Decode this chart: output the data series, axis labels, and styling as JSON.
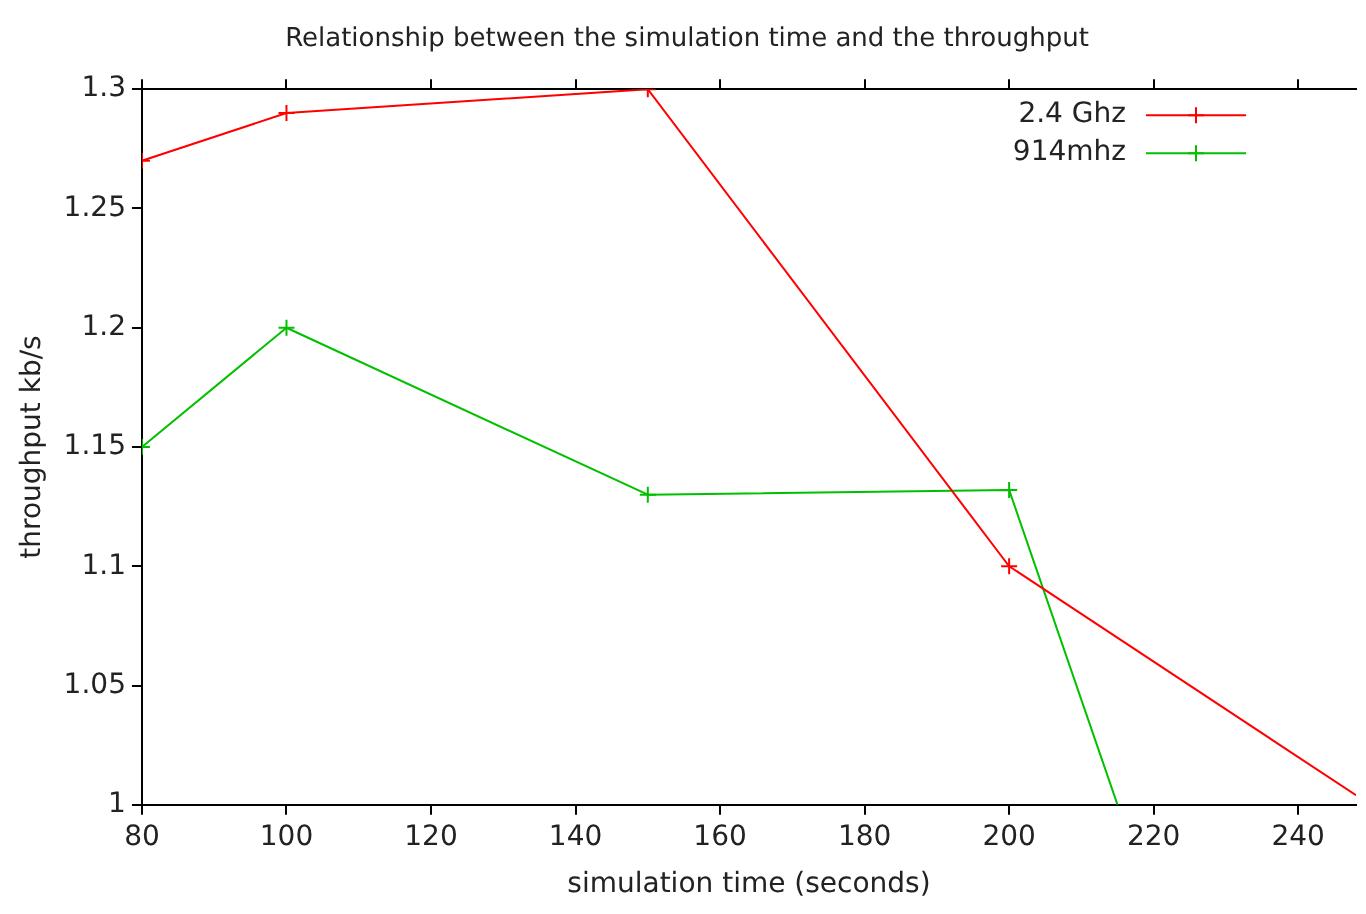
{
  "chart_data": {
    "type": "line",
    "title": "Relationship between the simulation time and the throughput",
    "xlabel": "simulation time (seconds)",
    "ylabel": "throughput kb/s",
    "series": [
      {
        "name": "2.4 Ghz",
        "color": "#ff0000",
        "x": [
          80,
          100,
          150,
          200,
          248
        ],
        "values": [
          1.27,
          1.29,
          1.3,
          1.1,
          1.004
        ]
      },
      {
        "name": "914mhz",
        "color": "#00c000",
        "x": [
          80,
          100,
          150,
          200,
          215
        ],
        "values": [
          1.15,
          1.2,
          1.13,
          1.132,
          1.0
        ]
      }
    ],
    "xlim": [
      80,
      248
    ],
    "xticks": [
      80,
      100,
      120,
      140,
      160,
      180,
      200,
      220,
      240
    ],
    "ylim": [
      1,
      1.3
    ],
    "yticks": [
      1,
      1.05,
      1.1,
      1.15,
      1.2,
      1.25,
      1.3
    ],
    "grid": false,
    "legend": "top right",
    "marker": "cross",
    "line_style": "solid"
  }
}
